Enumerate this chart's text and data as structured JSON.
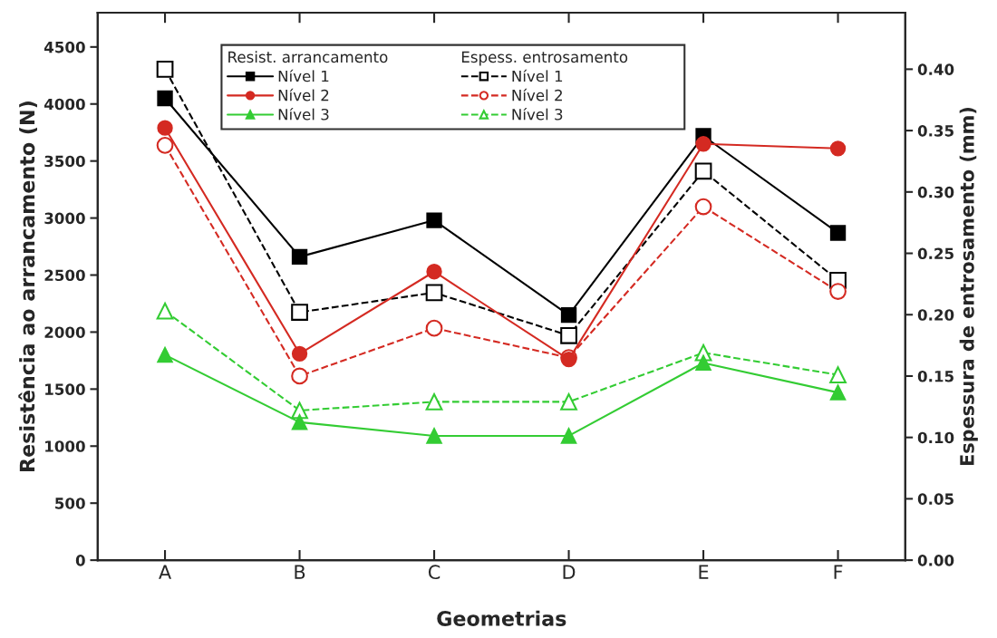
{
  "chart_data": {
    "type": "line",
    "xlabel": "Geometrias",
    "ylabel": "Resistência ao arrancamento (N)",
    "y2label": "Espessura de entrosamento (mm)",
    "legend_title": [
      "Resist. arrancamento",
      "Espess. entrosamento"
    ],
    "categories": [
      "A",
      "B",
      "C",
      "D",
      "E",
      "F"
    ],
    "ylim": [
      0,
      4800
    ],
    "yticks": [
      0,
      500,
      1000,
      1500,
      2000,
      2500,
      3000,
      3500,
      4000,
      4500
    ],
    "y2lim": [
      0,
      0.446
    ],
    "y2ticks": [
      {
        "value": 0,
        "label": "0.00"
      },
      {
        "value": 0.05,
        "label": "0.05"
      },
      {
        "value": 0.1,
        "label": "0.10"
      },
      {
        "value": 0.15,
        "label": "0.15"
      },
      {
        "value": 0.2,
        "label": "0.20"
      },
      {
        "value": 0.25,
        "label": "0.25"
      },
      {
        "value": 0.3,
        "label": "0.30"
      },
      {
        "value": 0.35,
        "label": "0.35"
      },
      {
        "value": 0.4,
        "label": "0.40"
      }
    ],
    "grid": false,
    "legend": "top",
    "series": [
      {
        "name": "Nível 1",
        "color": "#000000",
        "marker": "square",
        "line_style": "solid",
        "axis": "y",
        "values": [
          4050,
          2660,
          2980,
          2150,
          3720,
          2870
        ]
      },
      {
        "name": "Nível 2",
        "color": "#d42a22",
        "marker": "circle",
        "line_style": "solid",
        "axis": "y",
        "values": [
          3790,
          1810,
          2530,
          1760,
          3650,
          3610
        ]
      },
      {
        "name": "Nível 3",
        "color": "#33cc33",
        "marker": "triangle",
        "line_style": "solid",
        "axis": "y",
        "values": [
          1800,
          1210,
          1090,
          1090,
          1730,
          1470
        ]
      },
      {
        "name": "Nível 1",
        "color": "#000000",
        "marker": "square",
        "line_style": "dashed",
        "axis": "y2",
        "values": [
          0.4,
          0.202,
          0.218,
          0.183,
          0.317,
          0.228
        ]
      },
      {
        "name": "Nível 2",
        "color": "#d42a22",
        "marker": "circle",
        "line_style": "dashed",
        "axis": "y2",
        "values": [
          0.338,
          0.15,
          0.189,
          0.165,
          0.288,
          0.219
        ]
      },
      {
        "name": "Nível 3",
        "color": "#33cc33",
        "marker": "triangle",
        "line_style": "dashed",
        "axis": "y2",
        "values": [
          0.203,
          0.122,
          0.129,
          0.129,
          0.169,
          0.151
        ]
      }
    ]
  }
}
